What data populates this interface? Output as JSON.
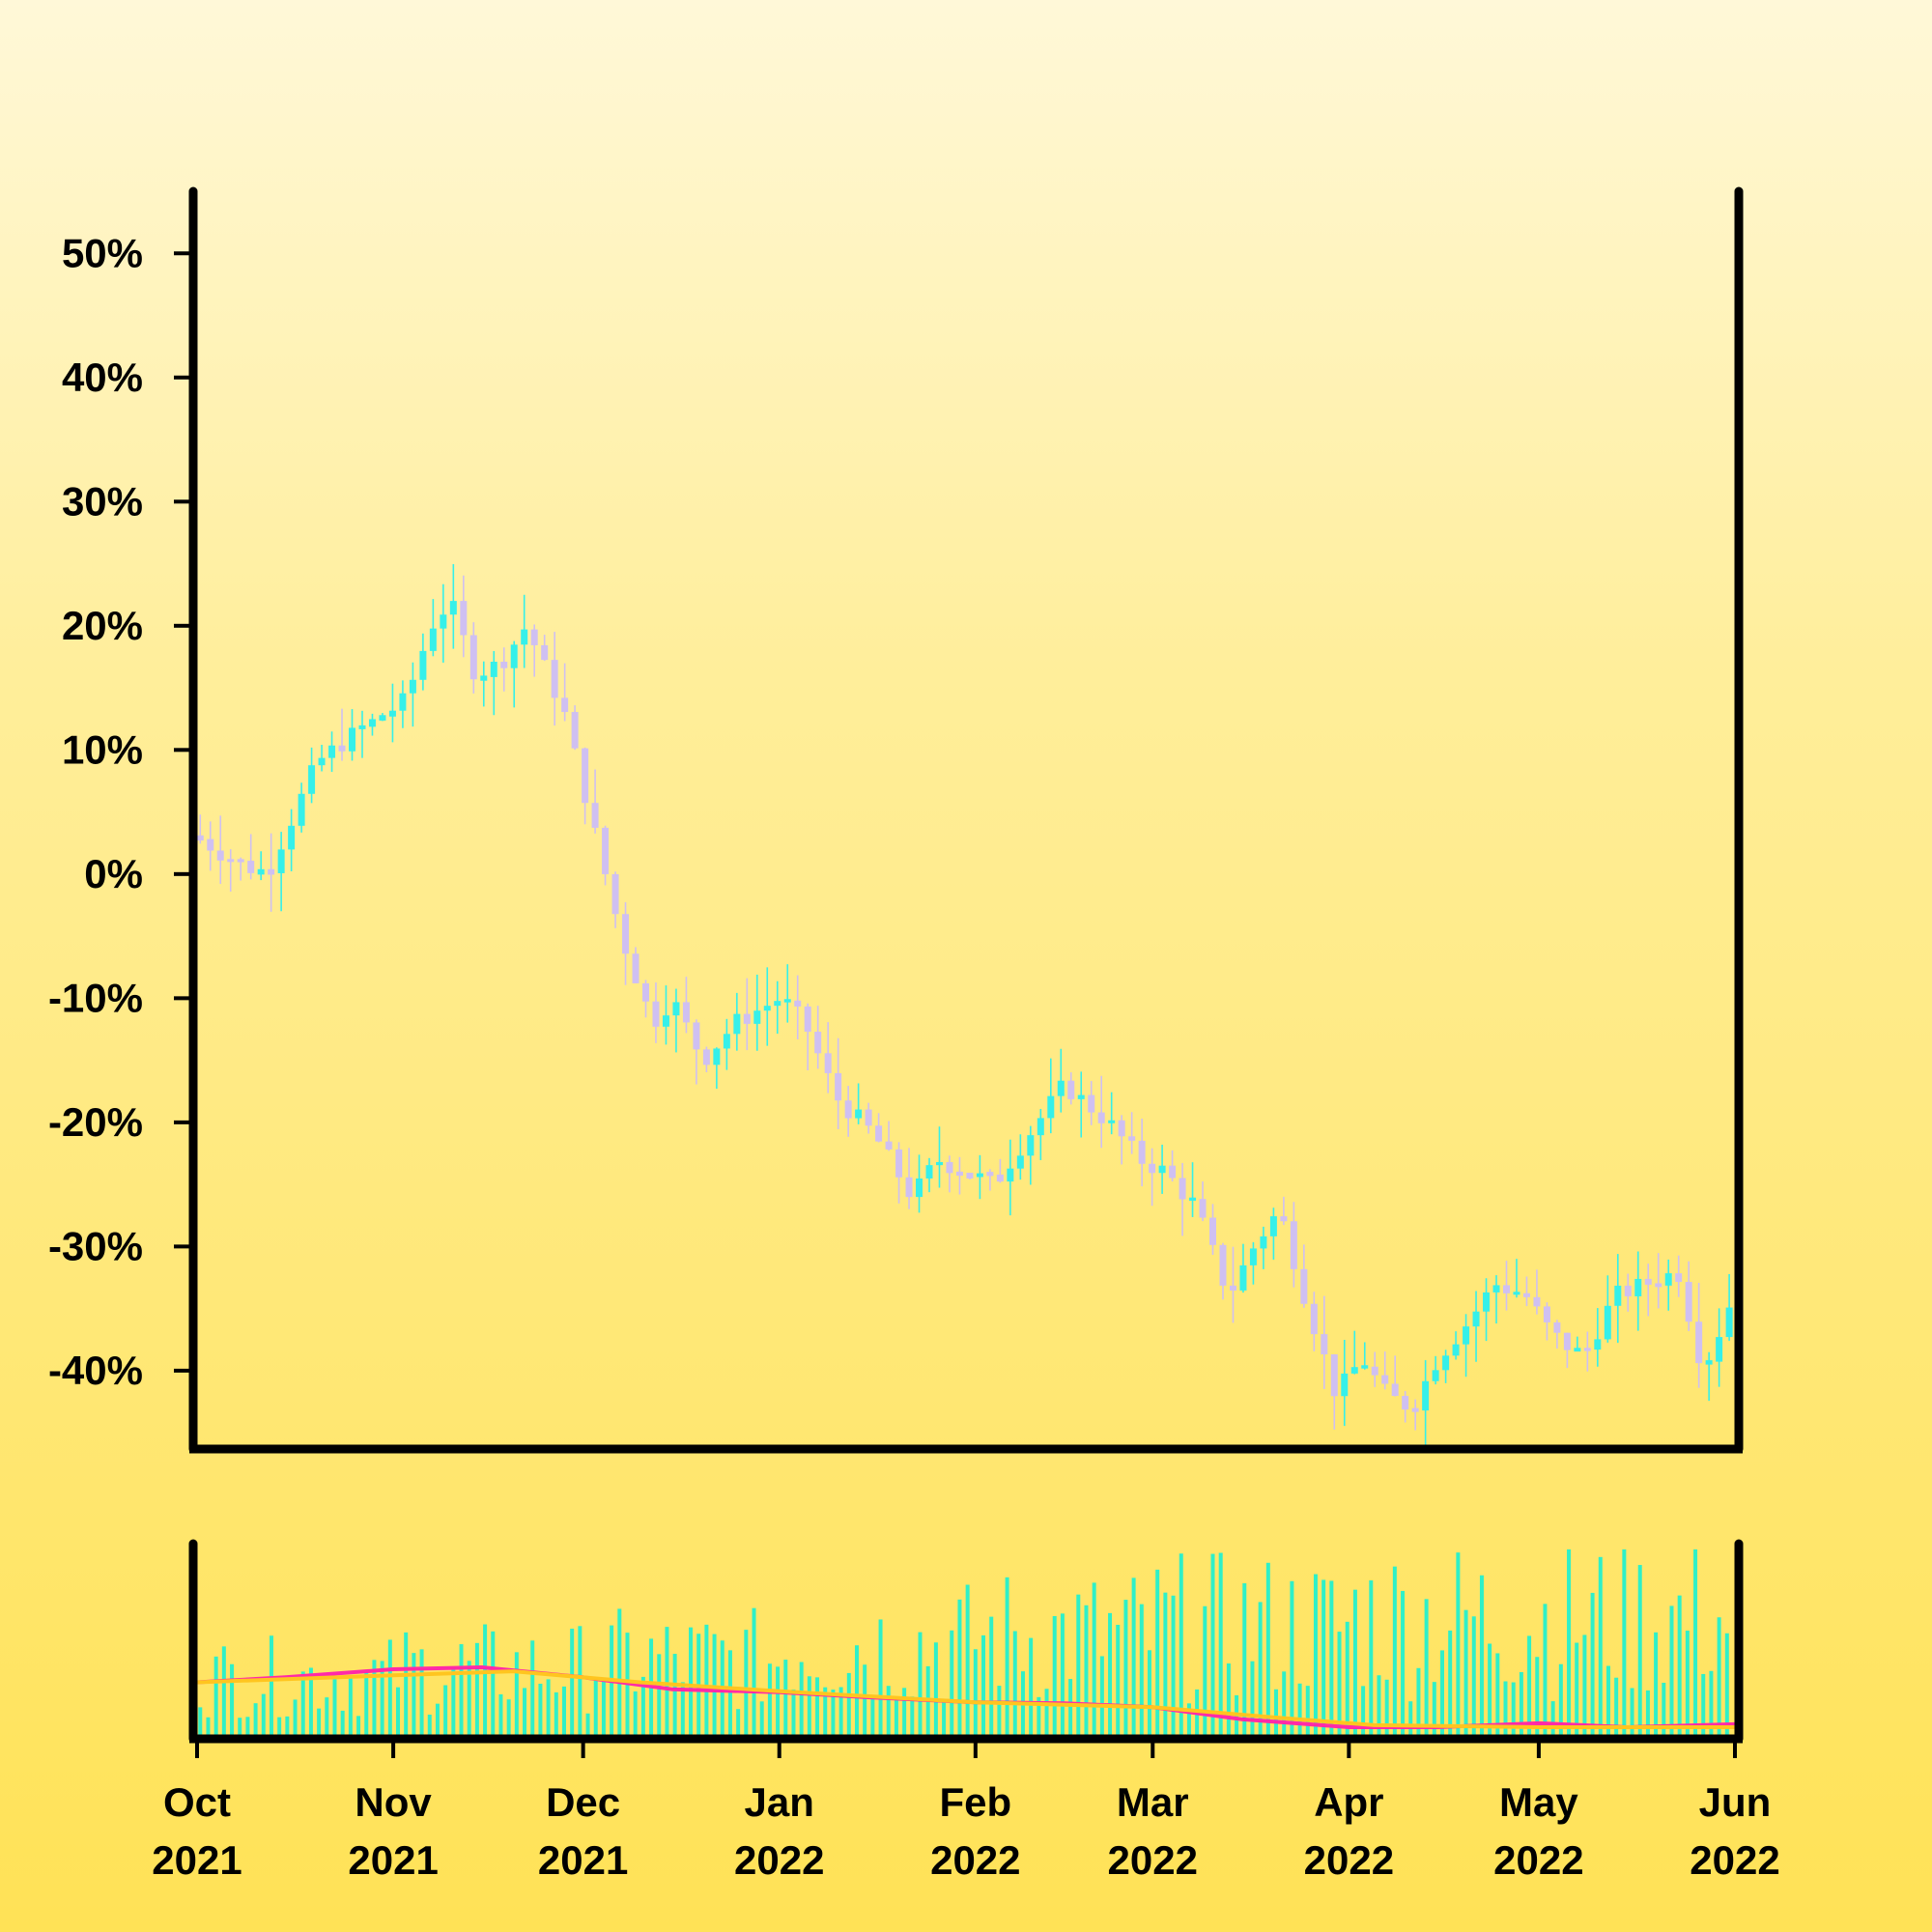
{
  "chart_data": [
    {
      "type": "candlestick",
      "title": "",
      "xlabel": "",
      "ylabel": "",
      "x_range": [
        "2021-10-01",
        "2022-06-01"
      ],
      "ylim": [
        -46,
        55
      ],
      "y_ticks": [
        50,
        40,
        30,
        20,
        10,
        0,
        -10,
        -20,
        -30,
        -40
      ],
      "y_tick_labels": [
        "50%",
        "40%",
        "30%",
        "20%",
        "10%",
        "0%",
        "-10%",
        "-20%",
        "-30%",
        "-40%"
      ],
      "x_ticks": [
        "2021-10-01",
        "2021-11-01",
        "2021-12-01",
        "2022-01-01",
        "2022-02-01",
        "2022-03-01",
        "2022-04-01",
        "2022-05-01",
        "2022-06-01"
      ],
      "x_tick_labels": [
        [
          "Oct",
          "2021"
        ],
        [
          "Nov",
          "2021"
        ],
        [
          "Dec",
          "2021"
        ],
        [
          "Jan",
          "2022"
        ],
        [
          "Feb",
          "2022"
        ],
        [
          "Mar",
          "2022"
        ],
        [
          "Apr",
          "2022"
        ],
        [
          "May",
          "2022"
        ],
        [
          "Jun",
          "2022"
        ]
      ],
      "grid": false,
      "up_color": "#35f0ea",
      "down_color": "#cfc0f2",
      "close_path": [
        [
          "2021-10-01",
          3
        ],
        [
          "2021-10-07",
          1
        ],
        [
          "2021-10-12",
          0
        ],
        [
          "2021-10-20",
          9
        ],
        [
          "2021-10-25",
          11
        ],
        [
          "2021-11-03",
          14
        ],
        [
          "2021-11-07",
          20
        ],
        [
          "2021-11-10",
          22
        ],
        [
          "2021-11-14",
          16
        ],
        [
          "2021-11-18",
          17
        ],
        [
          "2021-11-22",
          20
        ],
        [
          "2021-11-28",
          13
        ],
        [
          "2021-12-03",
          3
        ],
        [
          "2021-12-07",
          -5
        ],
        [
          "2021-12-12",
          -12
        ],
        [
          "2021-12-15",
          -10
        ],
        [
          "2021-12-20",
          -15
        ],
        [
          "2021-12-25",
          -12
        ],
        [
          "2022-01-01",
          -10
        ],
        [
          "2022-01-05",
          -12
        ],
        [
          "2022-01-10",
          -18
        ],
        [
          "2022-01-16",
          -21
        ],
        [
          "2022-01-22",
          -26
        ],
        [
          "2022-01-26",
          -23
        ],
        [
          "2022-02-04",
          -25
        ],
        [
          "2022-02-08",
          -22
        ],
        [
          "2022-02-15",
          -17
        ],
        [
          "2022-02-22",
          -20
        ],
        [
          "2022-02-27",
          -23
        ],
        [
          "2022-03-03",
          -24
        ],
        [
          "2022-03-08",
          -27
        ],
        [
          "2022-03-13",
          -34
        ],
        [
          "2022-03-17",
          -30
        ],
        [
          "2022-03-21",
          -27
        ],
        [
          "2022-03-25",
          -34
        ],
        [
          "2022-03-30",
          -42
        ],
        [
          "2022-04-03",
          -39
        ],
        [
          "2022-04-07",
          -42
        ],
        [
          "2022-04-11",
          -43
        ],
        [
          "2022-04-15",
          -39
        ],
        [
          "2022-04-20",
          -36
        ],
        [
          "2022-04-24",
          -33
        ],
        [
          "2022-04-29",
          -34
        ],
        [
          "2022-05-03",
          -37
        ],
        [
          "2022-05-08",
          -39
        ],
        [
          "2022-05-13",
          -34
        ],
        [
          "2022-05-18",
          -33
        ],
        [
          "2022-05-23",
          -32
        ],
        [
          "2022-05-27",
          -40
        ],
        [
          "2022-05-31",
          -35
        ],
        [
          "2022-06-02",
          -30
        ]
      ]
    },
    {
      "type": "bar",
      "title": "",
      "xlabel": "",
      "ylabel": "",
      "x_range": [
        "2021-10-01",
        "2022-06-01"
      ],
      "bar_color": "#2ff0c8",
      "volume_level_by_month": [
        [
          "2021-10",
          0.35
        ],
        [
          "2021-11",
          0.4
        ],
        [
          "2021-12",
          0.45
        ],
        [
          "2022-01",
          0.55
        ],
        [
          "2022-02",
          0.6
        ],
        [
          "2022-03",
          0.65
        ],
        [
          "2022-04",
          0.7
        ],
        [
          "2022-05",
          0.7
        ]
      ],
      "lines": [
        {
          "color": "#ff2aa8",
          "points": [
            [
              "2021-10-01",
              0.45
            ],
            [
              "2021-10-15",
              0.5
            ],
            [
              "2021-11-01",
              0.58
            ],
            [
              "2021-11-15",
              0.6
            ],
            [
              "2021-12-01",
              0.5
            ],
            [
              "2021-12-15",
              0.38
            ],
            [
              "2022-01-01",
              0.35
            ],
            [
              "2022-01-15",
              0.3
            ],
            [
              "2022-02-01",
              0.25
            ],
            [
              "2022-02-15",
              0.24
            ],
            [
              "2022-03-01",
              0.2
            ],
            [
              "2022-03-15",
              0.08
            ],
            [
              "2022-04-01",
              0.0
            ],
            [
              "2022-04-15",
              0.0
            ],
            [
              "2022-05-01",
              0.04
            ],
            [
              "2022-05-15",
              0.0
            ],
            [
              "2022-06-01",
              0.03
            ]
          ]
        },
        {
          "color": "#ffc51f",
          "points": [
            [
              "2021-10-01",
              0.45
            ],
            [
              "2021-11-01",
              0.52
            ],
            [
              "2021-11-20",
              0.56
            ],
            [
              "2021-12-10",
              0.45
            ],
            [
              "2022-01-01",
              0.36
            ],
            [
              "2022-02-01",
              0.25
            ],
            [
              "2022-03-01",
              0.2
            ],
            [
              "2022-03-20",
              0.1
            ],
            [
              "2022-04-05",
              0.02
            ],
            [
              "2022-05-01",
              0.0
            ],
            [
              "2022-06-01",
              0.0
            ]
          ]
        }
      ]
    }
  ]
}
